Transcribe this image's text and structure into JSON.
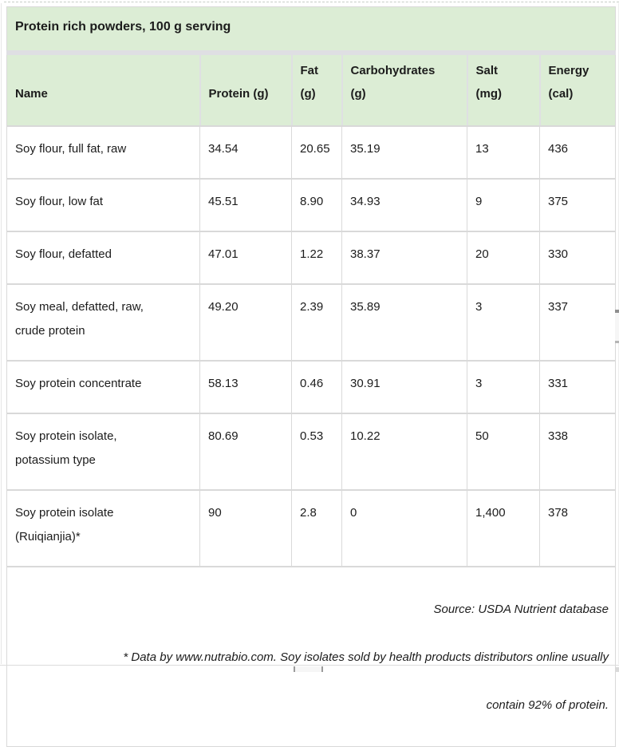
{
  "title": "Protein rich powders, 100 g serving",
  "table": {
    "columns": [
      "Name",
      "Protein (g)",
      "Fat\n(g)",
      "Carbohydrates\n(g)",
      "Salt\n(mg)",
      "Energy\n(cal)"
    ],
    "rows": [
      [
        "Soy flour, full fat, raw",
        "34.54",
        "20.65",
        "35.19",
        "13",
        "436"
      ],
      [
        "Soy flour, low fat",
        "45.51",
        "8.90",
        "34.93",
        "9",
        "375"
      ],
      [
        "Soy flour, defatted",
        "47.01",
        "1.22",
        "38.37",
        "20",
        "330"
      ],
      [
        "Soy meal, defatted, raw,\ncrude protein",
        "49.20",
        "2.39",
        "35.89",
        "3",
        "337"
      ],
      [
        "Soy protein concentrate",
        "58.13",
        "0.46",
        "30.91",
        "3",
        "331"
      ],
      [
        "Soy protein isolate,\npotassium type",
        "80.69",
        "0.53",
        "10.22",
        "50",
        "338"
      ],
      [
        "Soy protein isolate\n(Ruiqianjia)*",
        "90",
        "2.8",
        "0",
        "1,400",
        "378"
      ]
    ],
    "footer_lines": [
      "Source: USDA Nutrient database",
      "* Data by www.nutrabio.com. Soy isolates sold by health products distributors online usually",
      "contain 92% of protein."
    ]
  },
  "colors": {
    "header_green": "#dcedd5",
    "grid_border": "#d9d9d9",
    "band_separator": "#dfdfe3",
    "text": "#1c1c1c"
  }
}
